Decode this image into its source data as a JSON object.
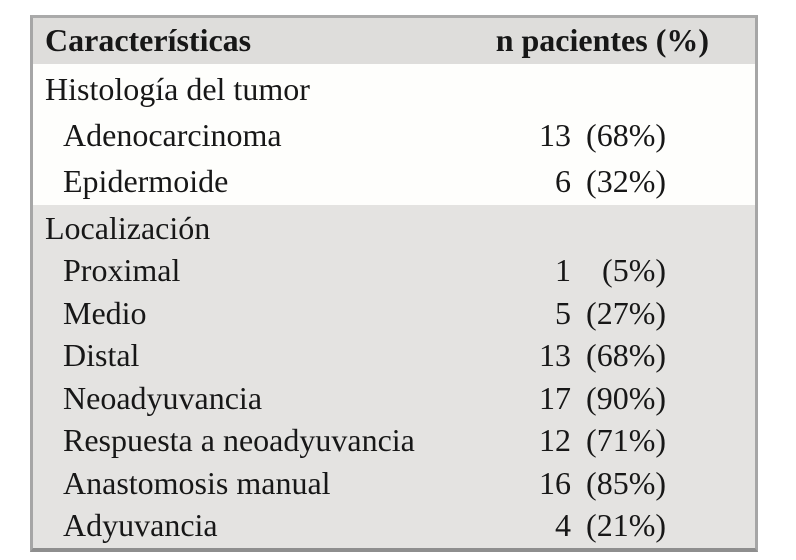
{
  "table": {
    "header": {
      "col1": "Características",
      "col2": "n pacientes (%)"
    },
    "sections": [
      {
        "name": "histologia",
        "style": "white",
        "rows": [
          {
            "label": "Histología del tumor",
            "indent": false,
            "num": "",
            "pct": ""
          },
          {
            "label": "Adenocarcinoma",
            "indent": true,
            "num": "13",
            "pct": "(68%)"
          },
          {
            "label": "Epidermoide",
            "indent": true,
            "num": "6",
            "pct": "(32%)"
          }
        ]
      },
      {
        "name": "localizacion",
        "style": "gray",
        "rows": [
          {
            "label": "Localización",
            "indent": false,
            "num": "",
            "pct": ""
          },
          {
            "label": "Proximal",
            "indent": true,
            "num": "1",
            "pct": "(5%)"
          },
          {
            "label": "Medio",
            "indent": true,
            "num": "5",
            "pct": "(27%)"
          },
          {
            "label": "Distal",
            "indent": true,
            "num": "13",
            "pct": "(68%)"
          },
          {
            "label": "Neoadyuvancia",
            "indent": true,
            "num": "17",
            "pct": "(90%)"
          },
          {
            "label": "Respuesta a neoadyuvancia",
            "indent": true,
            "num": "12",
            "pct": "(71%)"
          },
          {
            "label": "Anastomosis manual",
            "indent": true,
            "num": "16",
            "pct": "(85%)"
          },
          {
            "label": "Adyuvancia",
            "indent": true,
            "num": "4",
            "pct": "(21%)"
          }
        ]
      }
    ],
    "colors": {
      "header_bg": "#dedddb",
      "section_white_bg": "#fefefc",
      "section_gray_bg": "#e4e3e1",
      "border": "#a6a6a6",
      "border_bottom": "#8e8e8e",
      "text": "#171717"
    }
  }
}
